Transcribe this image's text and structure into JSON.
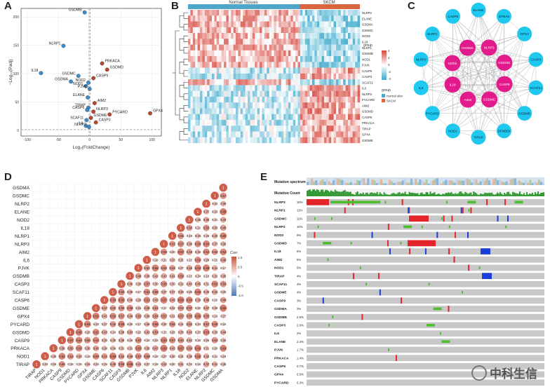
{
  "colors": {
    "up": "#c0472d",
    "down": "#3a8fd1",
    "normal": "#4fa6c9",
    "skcm": "#d9663f",
    "hub": "#e31a8c",
    "node": "#1ec8ee",
    "mut_red": "#e3252b",
    "mut_green": "#4dbe2d",
    "mut_blue": "#1b3ed6",
    "grey": "#c8c8c8"
  },
  "panels": {
    "a": "A",
    "b": "B",
    "c": "C",
    "d": "D",
    "e": "E"
  },
  "volcano": {
    "xlabel": "Log₂(FoldChange)",
    "ylabel": "−Log₁₀(Padj)",
    "x_ticks": [
      "-100",
      "-50",
      "0",
      "50",
      "100"
    ],
    "y_ticks": [
      "0",
      "50",
      "100",
      "150",
      "200"
    ],
    "points": [
      {
        "name": "GSDMB",
        "x": -8,
        "y": 208,
        "dir": "down",
        "lx": 0,
        "ly": 0
      },
      {
        "name": "NLRP1",
        "x": -42,
        "y": 149,
        "dir": "down",
        "lx": 0,
        "ly": 0
      },
      {
        "name": "IL18",
        "x": -78,
        "y": 101,
        "dir": "down",
        "lx": 0,
        "ly": 0
      },
      {
        "name": "PRKACA",
        "x": 20,
        "y": 118,
        "dir": "up",
        "lx": 0,
        "ly": 0
      },
      {
        "name": "GSDMD",
        "x": 28,
        "y": 107,
        "dir": "up",
        "lx": 0,
        "ly": 0
      },
      {
        "name": "GSDMC",
        "x": -18,
        "y": 96,
        "dir": "down",
        "lx": 0,
        "ly": 0
      },
      {
        "name": "GSDMA",
        "x": -30,
        "y": 86,
        "dir": "down",
        "lx": 0,
        "ly": 0
      },
      {
        "name": "CASP9",
        "x": 6,
        "y": 92,
        "dir": "up",
        "lx": 0,
        "ly": 0
      },
      {
        "name": "NOD2",
        "x": -2,
        "y": 84,
        "dir": "down",
        "lx": 0,
        "ly": 0
      },
      {
        "name": "NOD1",
        "x": -6,
        "y": 78,
        "dir": "down",
        "lx": 0,
        "ly": 0
      },
      {
        "name": "PJVK",
        "x": 0,
        "y": 73,
        "dir": "down",
        "lx": 0,
        "ly": 0
      },
      {
        "name": "ELANE",
        "x": -3,
        "y": 58,
        "dir": "down",
        "lx": 0,
        "ly": 0
      },
      {
        "name": "AIM2",
        "x": 8,
        "y": 48,
        "dir": "up",
        "lx": 0,
        "ly": 0
      },
      {
        "name": "TIRAP",
        "x": -2,
        "y": 40,
        "dir": "down",
        "lx": 0,
        "ly": 0
      },
      {
        "name": "CASP6",
        "x": -4,
        "y": 36,
        "dir": "down",
        "lx": 0,
        "ly": 0
      },
      {
        "name": "NLRP3",
        "x": 6,
        "y": 33,
        "dir": "up",
        "lx": 0,
        "ly": 0
      },
      {
        "name": "PYCARD",
        "x": 32,
        "y": 28,
        "dir": "up",
        "lx": 0,
        "ly": 0
      },
      {
        "name": "GPX4",
        "x": 97,
        "y": 30,
        "dir": "up",
        "lx": 0,
        "ly": 0
      },
      {
        "name": "GSDME",
        "x": 2,
        "y": 22,
        "dir": "up",
        "lx": 0,
        "ly": 0
      },
      {
        "name": "SCAF11",
        "x": -5,
        "y": 18,
        "dir": "down",
        "lx": 0,
        "ly": 0
      },
      {
        "name": "CASP3",
        "x": 10,
        "y": 14,
        "dir": "up",
        "lx": 0,
        "ly": 0
      },
      {
        "name": "IL6",
        "x": -6,
        "y": 8,
        "dir": "down",
        "lx": 0,
        "ly": 0
      },
      {
        "name": "NLRP2",
        "x": -1,
        "y": 6,
        "dir": "down",
        "lx": 0,
        "ly": 0
      }
    ]
  },
  "heatmap": {
    "groups": [
      "Normal Tissues",
      "SKCM"
    ],
    "genes": [
      "NLRP2",
      "ELANE",
      "GSDMA",
      "GSDMC",
      "NOD2",
      "IL18",
      "NLRP1",
      "GSDMB",
      "NOD1",
      "PJVK",
      "CASP6",
      "CASP3",
      "SCAF11",
      "IL6",
      "NLRP3",
      "PYCARD",
      "AIM2",
      "GSDMD",
      "CASP9",
      "PRKACA",
      "TIRAP",
      "GPX4",
      "GSDME"
    ],
    "legend_title": "group",
    "legend_items": [
      "normal skin",
      "SKCM"
    ],
    "scale_ticks": [
      "4",
      "2",
      "0",
      "-2",
      "-4"
    ]
  },
  "network": {
    "outer": [
      "ELANE",
      "DFNA5",
      "GPX4",
      "CASP3",
      "SCAF11",
      "GSDMB",
      "DFNB59",
      "TIRAP",
      "NOD1",
      "PYCARD",
      "IL6",
      "NLRP3",
      "NLRP1",
      "CASP6"
    ],
    "hubs": [
      "GSDMA",
      "NLRP3",
      "GSDMD",
      "CASP8",
      "GSDMC",
      "AIM2",
      "IL18",
      "NOD2"
    ]
  },
  "corr": {
    "genes": [
      "GSDMA",
      "GSDMC",
      "NLRP2",
      "ELANE",
      "NOD2",
      "IL18",
      "NLRP1",
      "NLRP3",
      "AIM2",
      "IL6",
      "PJVK",
      "GSDMB",
      "CASP3",
      "SCAF11",
      "CASP6",
      "GSDME",
      "GPX4",
      "PYCARD",
      "GSDMD",
      "CASP9",
      "PRKACA",
      "NOD1",
      "TIRAP"
    ],
    "legend_title": "Corr",
    "legend_ticks": [
      "1.0",
      "0.5",
      "0",
      "-0.5",
      "-1.0"
    ]
  },
  "oncoprint": {
    "track1": "Mutation spectrum",
    "track2": "Mutation Count",
    "genes": [
      {
        "g": "NLRP3",
        "p": "16%"
      },
      {
        "g": "NLRP1",
        "p": "11%"
      },
      {
        "g": "GSDMC",
        "p": "11%"
      },
      {
        "g": "NLRP2",
        "p": "10%"
      },
      {
        "g": "NOD2",
        "p": "9%"
      },
      {
        "g": "GSDMD",
        "p": "7%"
      },
      {
        "g": "IL18",
        "p": "6%"
      },
      {
        "g": "AIM2",
        "p": "5%"
      },
      {
        "g": "NOD1",
        "p": "5%"
      },
      {
        "g": "TIRAP",
        "p": "4%"
      },
      {
        "g": "SCAF11",
        "p": "4%"
      },
      {
        "g": "GSDME",
        "p": "4%"
      },
      {
        "g": "CASP9",
        "p": "3%"
      },
      {
        "g": "GSDMA",
        "p": "3%"
      },
      {
        "g": "GSDMB",
        "p": "2.6%"
      },
      {
        "g": "CASP3",
        "p": "2.6%"
      },
      {
        "g": "IL6",
        "p": "2%"
      },
      {
        "g": "ELANE",
        "p": "2.4%"
      },
      {
        "g": "PJVK",
        "p": "1.7%"
      },
      {
        "g": "PRKACA",
        "p": "1.4%"
      },
      {
        "g": "CASP6",
        "p": "0.7%"
      },
      {
        "g": "GPX4",
        "p": "0.5%"
      },
      {
        "g": "PYCARD",
        "p": "0.3%"
      }
    ]
  },
  "watermark": "中科生信"
}
